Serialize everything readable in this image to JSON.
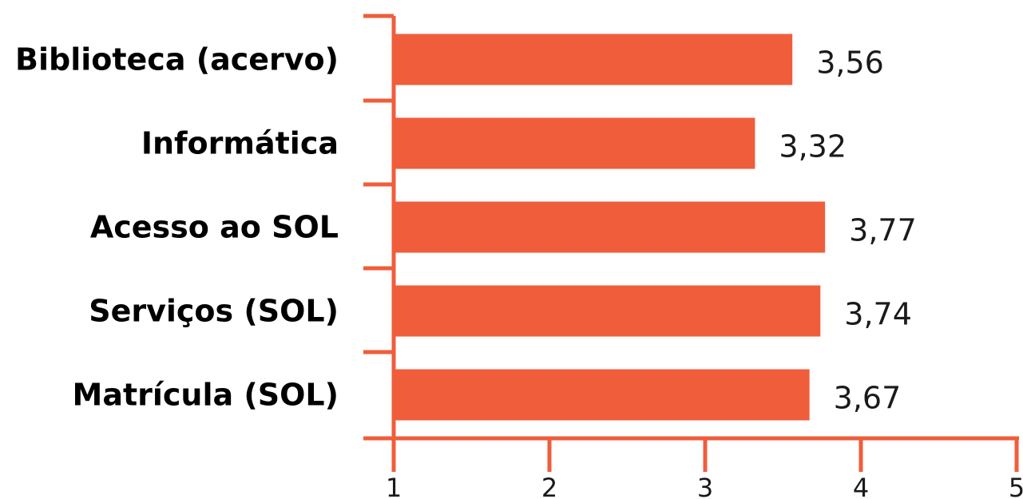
{
  "chart_data": {
    "type": "bar",
    "orientation": "horizontal",
    "categories": [
      "Biblioteca (acervo)",
      "Informática",
      "Acesso ao SOL",
      "Serviços (SOL)",
      "Matrícula (SOL)"
    ],
    "values": [
      3.56,
      3.32,
      3.77,
      3.74,
      3.67
    ],
    "value_labels": [
      "3,56",
      "3,32",
      "3,77",
      "3,74",
      "3,67"
    ],
    "xlim": [
      1,
      5
    ],
    "x_ticks": [
      1,
      2,
      3,
      4,
      5
    ],
    "x_tick_labels": [
      "1",
      "2",
      "3",
      "4",
      "5"
    ],
    "title": "",
    "xlabel": "",
    "ylabel": "",
    "grid": false,
    "legend": "none",
    "colors": {
      "bar": "#f05d3b",
      "axis": "#f05d3b",
      "text": "#000000"
    }
  }
}
